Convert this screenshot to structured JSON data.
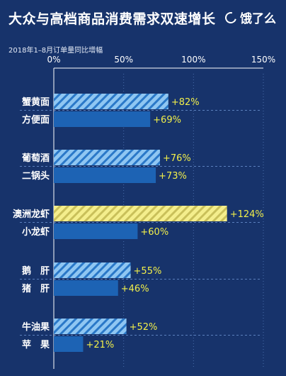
{
  "header": {
    "title": "大众与高档商品消费需求双速增长",
    "brand": "饿了么",
    "subtitle": "2018年1–8月订单量同比增幅"
  },
  "chart_data": {
    "type": "bar",
    "orientation": "horizontal",
    "title": "大众与高档商品消费需求双速增长",
    "subtitle": "2018年1–8月订单量同比增幅",
    "xlim": [
      0,
      150
    ],
    "x_ticks": [
      "0%",
      "50%",
      "100%",
      "150%"
    ],
    "grid": true,
    "groups": [
      {
        "items": [
          {
            "category": "蟹黄面",
            "value": 82,
            "label": "+82%",
            "style": "hatched-blue"
          },
          {
            "category": "方便面",
            "value": 69,
            "label": "+69%",
            "style": "solid-blue"
          }
        ]
      },
      {
        "items": [
          {
            "category": "葡萄酒",
            "value": 76,
            "label": "+76%",
            "style": "hatched-blue"
          },
          {
            "category": "二锅头",
            "value": 73,
            "label": "+73%",
            "style": "solid-blue"
          }
        ]
      },
      {
        "items": [
          {
            "category": "澳洲龙虾",
            "value": 124,
            "label": "+124%",
            "style": "hatched-yellow"
          },
          {
            "category": "小龙虾",
            "value": 60,
            "label": "+60%",
            "style": "solid-blue"
          }
        ]
      },
      {
        "items": [
          {
            "category": "鹅　肝",
            "value": 55,
            "label": "+55%",
            "style": "hatched-blue"
          },
          {
            "category": "猪　肝",
            "value": 46,
            "label": "+46%",
            "style": "solid-blue"
          }
        ]
      },
      {
        "items": [
          {
            "category": "牛油果",
            "value": 52,
            "label": "+52%",
            "style": "hatched-blue"
          },
          {
            "category": "苹　果",
            "value": 21,
            "label": "+21%",
            "style": "solid-blue"
          }
        ]
      }
    ]
  },
  "colors": {
    "background": "#17336b",
    "solid_bar": "#1d63b4",
    "hatch_blue_fill": "#8fc6f2",
    "hatch_blue_stripe": "#2a78c8",
    "hatch_yellow_fill": "#f4ee8c",
    "hatch_yellow_stripe": "#c9c05a",
    "value_label": "#f2ef4a"
  }
}
